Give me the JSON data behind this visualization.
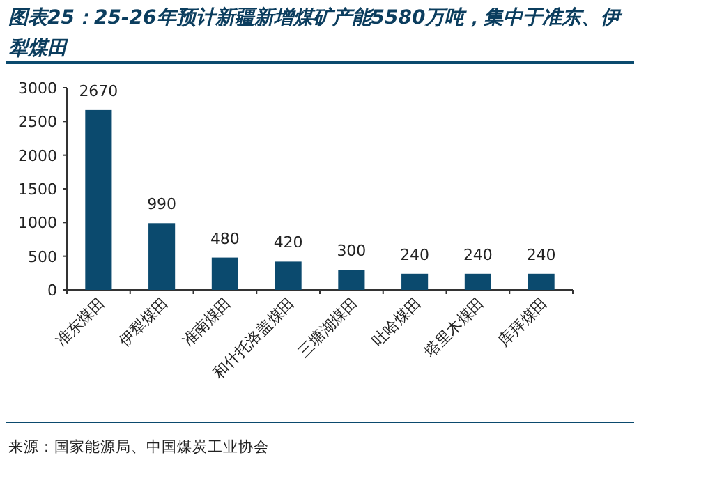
{
  "chart_data": {
    "type": "bar",
    "title": "图表25：25-26年预计新疆新增煤矿产能5580万吨，集中于准东、伊犁煤田",
    "categories": [
      "准东煤田",
      "伊犁煤田",
      "准南煤田",
      "和什托洛盖煤田",
      "三塘湖煤田",
      "吐哈煤田",
      "塔里木煤田",
      "库拜煤田"
    ],
    "values": [
      2670,
      990,
      480,
      420,
      300,
      240,
      240,
      240
    ],
    "color": "#0b4a6e",
    "ylim": [
      0,
      3000
    ],
    "yticks": [
      0,
      500,
      1000,
      1500,
      2000,
      2500,
      3000
    ],
    "data_labels": true,
    "annotations": [
      "来源：国家能源局、中国煤炭工业协会"
    ]
  }
}
